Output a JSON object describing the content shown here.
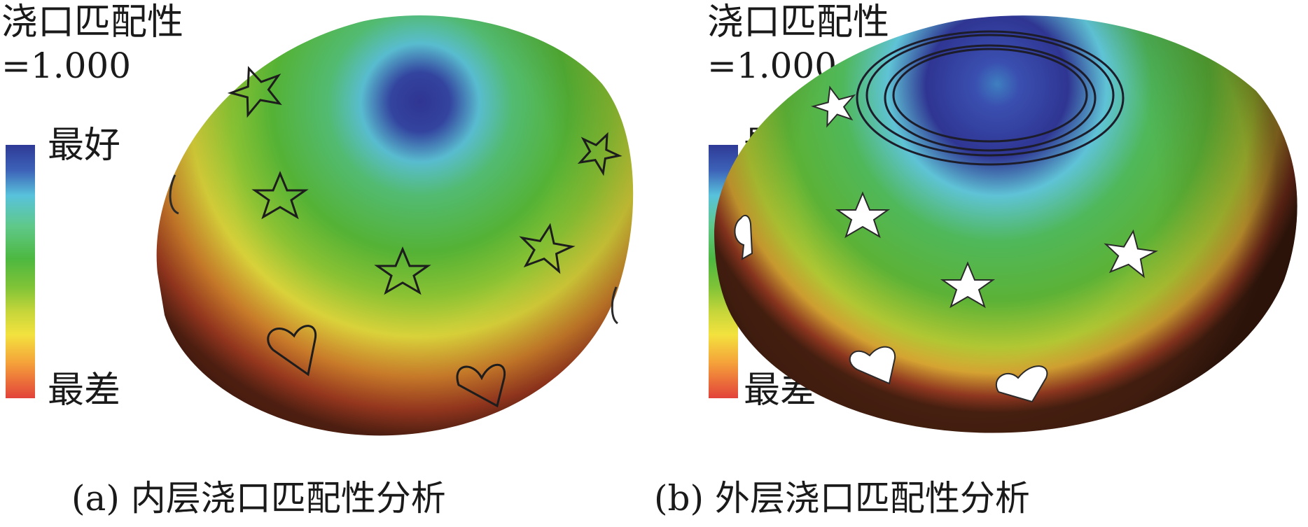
{
  "figure": {
    "panel_a": {
      "title": "浇口匹配性",
      "value": "=1.000",
      "legend_best": "最好",
      "legend_worst": "最差",
      "caption": "(a) 内层浇口匹配性分析"
    },
    "panel_b": {
      "title": "浇口匹配性",
      "value": "=1.000",
      "legend_best": "最好",
      "legend_worst": "最差",
      "caption": "(b) 外层浇口匹配性分析"
    }
  },
  "colors": {
    "best": "#2e3a96",
    "cyan": "#58c2dc",
    "green": "#4db840",
    "yellow": "#f3e23e",
    "worst": "#e2423a",
    "dark_edge": "#3a2410"
  }
}
